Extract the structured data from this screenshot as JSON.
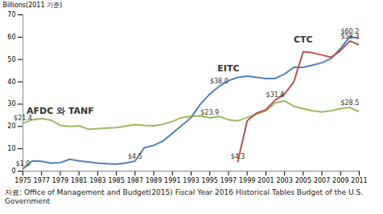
{
  "chart_data": {
    "type": "line",
    "y_label": "Billions(2011 기준)",
    "caption": "자료: Office of Management and Budget(2015) Fiscal Year 2016 Historical Tables Budget of the U.S. Government",
    "x": [
      1975,
      1976,
      1977,
      1978,
      1979,
      1980,
      1981,
      1982,
      1983,
      1984,
      1985,
      1986,
      1987,
      1988,
      1989,
      1990,
      1991,
      1992,
      1993,
      1994,
      1995,
      1996,
      1997,
      1998,
      1999,
      2000,
      2001,
      2002,
      2003,
      2004,
      2005,
      2006,
      2007,
      2008,
      2009,
      2010,
      2011
    ],
    "series": [
      {
        "name": "AFDC 와 TANF",
        "color": "#9bbb59",
        "values": [
          21.4,
          23,
          23.5,
          22.8,
          20.5,
          20,
          20.3,
          18.8,
          19,
          19.3,
          19.5,
          20.2,
          20.8,
          20.5,
          20.3,
          21,
          22.3,
          24,
          24.5,
          24.8,
          23.9,
          24.5,
          23,
          22.5,
          24,
          25.5,
          27,
          30.5,
          31.5,
          29,
          28,
          27,
          26.5,
          27,
          28,
          28.5,
          26.5
        ]
      },
      {
        "name": "EITC",
        "color": "#4f81bd",
        "values": [
          1.0,
          4.6,
          4.4,
          3.6,
          3.8,
          5.3,
          4.6,
          4.1,
          3.6,
          3.3,
          3.1,
          3.6,
          4.5,
          10.5,
          11.5,
          13.5,
          17,
          20.5,
          24,
          30,
          34.5,
          38.0,
          40.5,
          42,
          42.5,
          42,
          41.5,
          41.5,
          43.5,
          46.5,
          46.5,
          47.5,
          48.5,
          50.5,
          55,
          60.2,
          59.5
        ]
      },
      {
        "name": "CTC",
        "color": "#c0504d",
        "values": [
          null,
          null,
          null,
          null,
          null,
          null,
          null,
          null,
          null,
          null,
          null,
          null,
          null,
          null,
          null,
          null,
          null,
          null,
          null,
          null,
          null,
          null,
          null,
          4.3,
          22.5,
          26,
          27.5,
          31.8,
          34.5,
          40,
          53.5,
          53,
          52,
          51,
          54,
          58.3,
          56.5
        ]
      }
    ],
    "annotations": [
      {
        "text": "AFDC 와 TANF",
        "x": 1979,
        "y": 27
      },
      {
        "text": "EITC",
        "x": 1997,
        "y": 46
      },
      {
        "text": "CTC",
        "x": 2005,
        "y": 59
      },
      {
        "text": "$21.4",
        "x": 1975,
        "y": 21.4
      },
      {
        "text": "$1.0",
        "x": 1975,
        "y": 1.0
      },
      {
        "text": "$4.5",
        "x": 1987,
        "y": 4.5
      },
      {
        "text": "$38.0",
        "x": 1996,
        "y": 38.0
      },
      {
        "text": "$23.9",
        "x": 1995,
        "y": 23.9
      },
      {
        "text": "$4.3",
        "x": 1998,
        "y": 4.3
      },
      {
        "text": "$31.8",
        "x": 2002,
        "y": 31.8
      },
      {
        "text": "$60.2",
        "x": 2010,
        "y": 60.2
      },
      {
        "text": "$58.3",
        "x": 2010,
        "y": 58.3
      },
      {
        "text": "$28.5",
        "x": 2010,
        "y": 28.5
      }
    ],
    "xlim": [
      1975,
      2011
    ],
    "xticks": [
      1975,
      1977,
      1979,
      1981,
      1983,
      1985,
      1987,
      1989,
      1991,
      1993,
      1995,
      1997,
      1999,
      2001,
      2003,
      2005,
      2007,
      2009,
      2011
    ],
    "ylim": [
      0,
      70
    ],
    "yticks": [
      0,
      10,
      20,
      30,
      40,
      50,
      60,
      70
    ],
    "grid": false
  }
}
